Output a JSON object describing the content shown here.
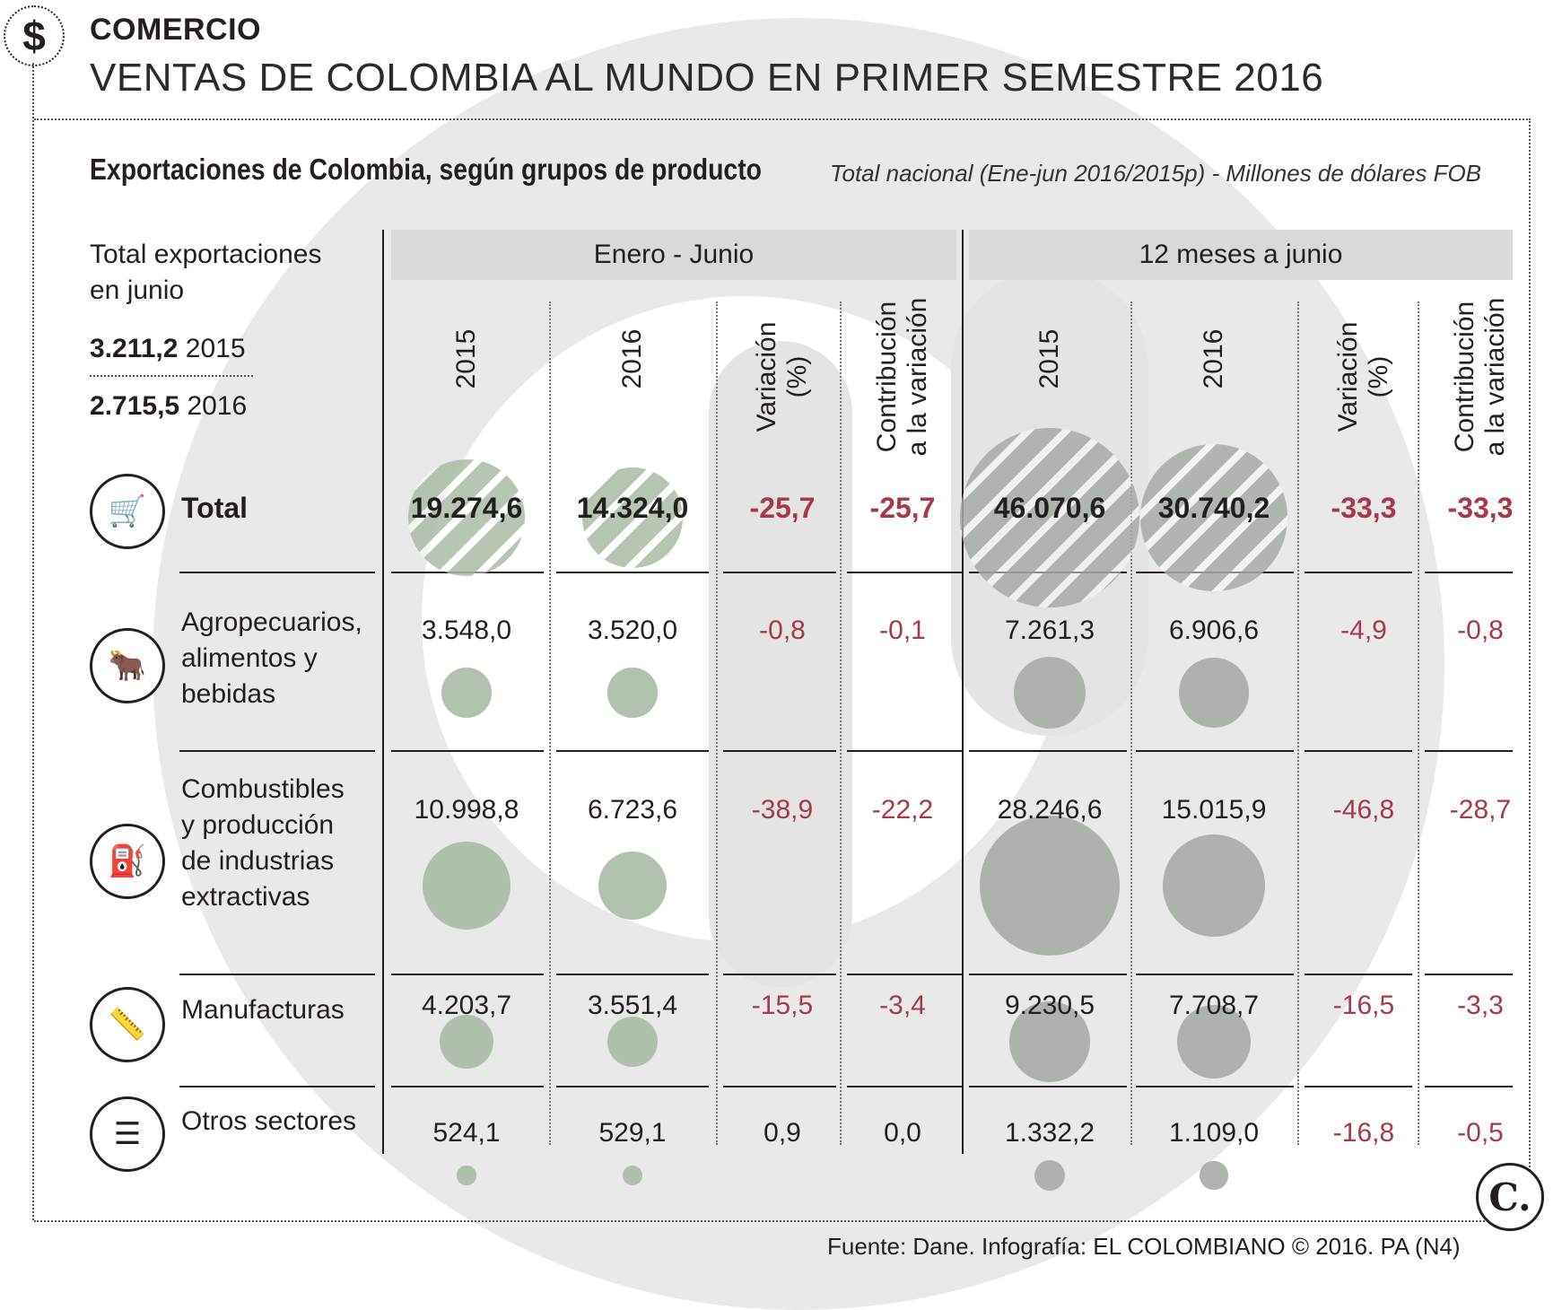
{
  "header": {
    "section": "COMERCIO",
    "title": "VENTAS DE COLOMBIA AL MUNDO EN PRIMER SEMESTRE 2016",
    "icon": "dollar-icon"
  },
  "subtitle": {
    "bold": "Exportaciones de Colombia, según grupos de producto",
    "italic": "Total nacional (Ene-jun 2016/2015p) - Millones de dólares FOB"
  },
  "totals_june": {
    "label_line1": "Total exportaciones",
    "label_line2": "en junio",
    "rows": [
      {
        "value": "3.211,2",
        "year": "2015"
      },
      {
        "value": "2.715,5",
        "year": "2016"
      }
    ]
  },
  "groups": [
    {
      "label": "Enero - Junio"
    },
    {
      "label": "12 meses a junio"
    }
  ],
  "columns": [
    {
      "label": "2015"
    },
    {
      "label": "2016"
    },
    {
      "label": "Variación\n(%)"
    },
    {
      "label": "Contribución\na la variación"
    },
    {
      "label": "2015"
    },
    {
      "label": "2016"
    },
    {
      "label": "Variación\n(%)"
    },
    {
      "label": "Contribución\na la variación"
    }
  ],
  "colors": {
    "bubble_green": "#a9bca5",
    "bubble_gray": "#a6aca6",
    "negative_text": "#a8384b",
    "header_gray": "#d9d9d9"
  },
  "chart_data": {
    "type": "table",
    "title": "Exportaciones de Colombia, según grupos de producto",
    "units": "Millones de dólares FOB",
    "columns": [
      "Enero - Junio 2015",
      "Enero - Junio 2016",
      "Variación (%)",
      "Contribución a la variación",
      "12 meses a junio 2015",
      "12 meses a junio 2016",
      "Variación (%)",
      "Contribución a la variación"
    ],
    "rows": [
      {
        "name": "Total",
        "icon": "hand-truck-icon",
        "cells": [
          "19.274,6",
          "14.324,0",
          "-25,7",
          "-25,7",
          "46.070,6",
          "30.740,2",
          "-33,3",
          "-33,3"
        ],
        "values": [
          19274.6,
          14324.0,
          -25.7,
          -25.7,
          46070.6,
          30740.2,
          -33.3,
          -33.3
        ]
      },
      {
        "name": "Agropecuarios, alimentos y bebidas",
        "label_lines": [
          "Agropecuarios,",
          "alimentos y",
          "bebidas"
        ],
        "icon": "bull-icon",
        "cells": [
          "3.548,0",
          "3.520,0",
          "-0,8",
          "-0,1",
          "7.261,3",
          "6.906,6",
          "-4,9",
          "-0,8"
        ],
        "values": [
          3548.0,
          3520.0,
          -0.8,
          -0.1,
          7261.3,
          6906.6,
          -4.9,
          -0.8
        ]
      },
      {
        "name": "Combustibles y producción de industrias extractivas",
        "label_lines": [
          "Combustibles",
          "y producción",
          "de industrias",
          "extractivas"
        ],
        "icon": "oil-pump-icon",
        "cells": [
          "10.998,8",
          "6.723,6",
          "-38,9",
          "-22,2",
          "28.246,6",
          "15.015,9",
          "-46,8",
          "-28,7"
        ],
        "values": [
          10998.8,
          6723.6,
          -38.9,
          -22.2,
          28246.6,
          15015.9,
          -46.8,
          -28.7
        ]
      },
      {
        "name": "Manufacturas",
        "label_lines": [
          "Manufacturas"
        ],
        "icon": "tape-measure-icon",
        "cells": [
          "4.203,7",
          "3.551,4",
          "-15,5",
          "-3,4",
          "9.230,5",
          "7.708,7",
          "-16,5",
          "-3,3"
        ],
        "values": [
          4203.7,
          3551.4,
          -15.5,
          -3.4,
          9230.5,
          7708.7,
          -16.5,
          -3.3
        ]
      },
      {
        "name": "Otros sectores",
        "label_lines": [
          "Otros sectores"
        ],
        "icon": "list-icon",
        "cells": [
          "524,1",
          "529,1",
          "0,9",
          "0,0",
          "1.332,2",
          "1.109,0",
          "-16,8",
          "-0,5"
        ],
        "values": [
          524.1,
          529.1,
          0.9,
          0.0,
          1332.2,
          1109.0,
          -16.8,
          -0.5
        ]
      }
    ]
  },
  "footer": {
    "source": "Fuente: Dane. Infografía: EL COLOMBIANO © 2016. PA (N4)",
    "logo_letter": "C."
  }
}
